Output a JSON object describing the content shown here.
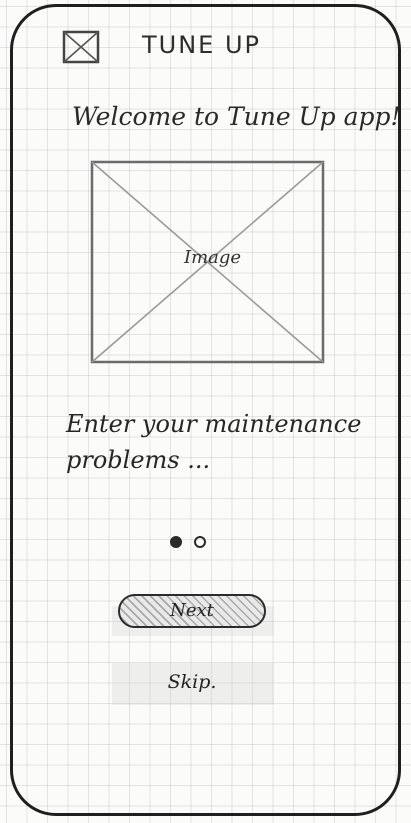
{
  "header": {
    "title": "TUNE UP",
    "menu_icon": "placeholder-x-box-icon"
  },
  "welcome": {
    "text": "Welcome to Tune Up app!"
  },
  "hero": {
    "image_label": "Image",
    "icon": "image-placeholder-icon"
  },
  "onboarding": {
    "prompt": "Enter your maintenance problems ...",
    "pagination": {
      "current": 1,
      "total": 2
    }
  },
  "actions": {
    "next_label": "Next",
    "skip_label": "Skip."
  }
}
